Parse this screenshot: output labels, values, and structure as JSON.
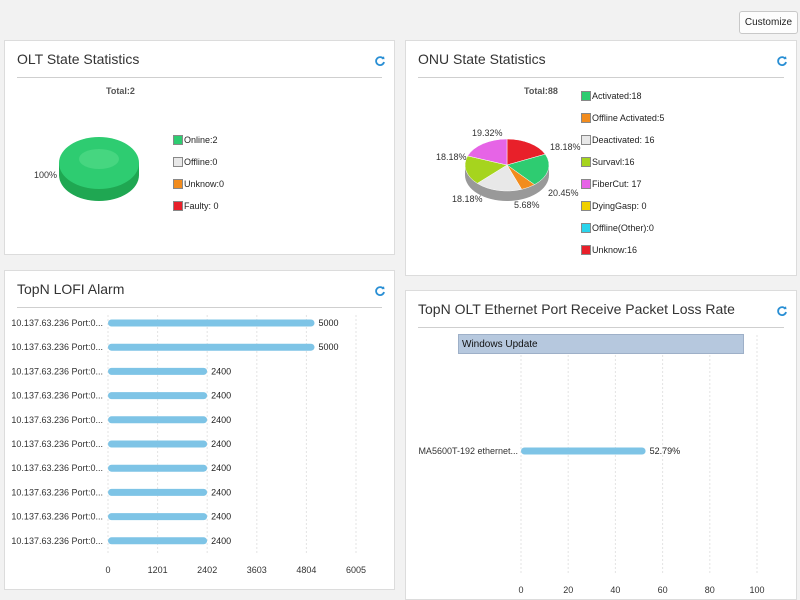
{
  "toolbar": {
    "customize_label": "Customize"
  },
  "olt_panel": {
    "title": "OLT State Statistics",
    "total_label": "Total:2",
    "pie_percent_label": "100%",
    "legend": [
      {
        "label": "Online:2",
        "color": "#2ecc71"
      },
      {
        "label": "Offline:0",
        "color": "#e8e8e8"
      },
      {
        "label": "Unknow:0",
        "color": "#f28c1e"
      },
      {
        "label": "Faulty: 0",
        "color": "#e8202a"
      }
    ]
  },
  "onu_panel": {
    "title": "ONU State Statistics",
    "total_label": "Total:88",
    "pie_labels": [
      "19.32%",
      "18.18%",
      "18.18%",
      "20.45%",
      "18.18%",
      "5.68%"
    ],
    "legend": [
      {
        "label": "Activated:18",
        "color": "#2ecc71"
      },
      {
        "label": "Offline Activated:5",
        "color": "#f28c1e"
      },
      {
        "label": "Deactivated: 16",
        "color": "#e8e8e8"
      },
      {
        "label": "Survavl:16",
        "color": "#a6d41e"
      },
      {
        "label": "FiberCut: 17",
        "color": "#e664e6"
      },
      {
        "label": "DyingGasp: 0",
        "color": "#f0d000"
      },
      {
        "label": "Offline(Other):0",
        "color": "#2ad4ec"
      },
      {
        "label": "Unknow:16",
        "color": "#e8202a"
      }
    ]
  },
  "lofi_panel": {
    "title": "TopN LOFI Alarm",
    "chart_data": {
      "type": "bar",
      "orientation": "horizontal",
      "categories": [
        "10.137.63.236 Port:0...",
        "10.137.63.236 Port:0...",
        "10.137.63.236 Port:0...",
        "10.137.63.236 Port:0...",
        "10.137.63.236 Port:0...",
        "10.137.63.236 Port:0...",
        "10.137.63.236 Port:0...",
        "10.137.63.236 Port:0...",
        "10.137.63.236 Port:0...",
        "10.137.63.236 Port:0..."
      ],
      "values": [
        5000,
        5000,
        2400,
        2400,
        2400,
        2400,
        2400,
        2400,
        2400,
        2400
      ],
      "xticks": [
        0,
        1201,
        2402,
        3603,
        4804,
        6005
      ],
      "xlim": [
        0,
        6005
      ],
      "grid": true,
      "bar_color": "#7ec4e6"
    }
  },
  "loss_panel": {
    "title": "TopN OLT Ethernet Port Receive Packet Loss Rate",
    "popup_label": "Windows Update",
    "chart_data": {
      "type": "bar",
      "orientation": "horizontal",
      "categories": [
        "MA5600T-192 ethernet..."
      ],
      "values": [
        52.79
      ],
      "value_labels": [
        "52.79%"
      ],
      "xticks": [
        0,
        20,
        40,
        60,
        80,
        100
      ],
      "xlim": [
        0,
        100
      ],
      "grid": true,
      "bar_color": "#7ec4e6"
    }
  }
}
